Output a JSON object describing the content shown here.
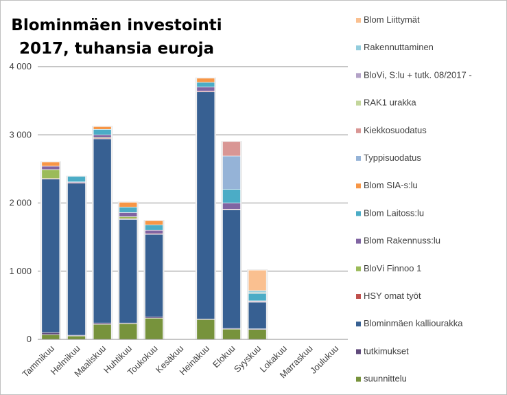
{
  "chart_data": {
    "type": "bar",
    "stacked": true,
    "title_lines": [
      "Blominmäen investointi",
      "2017, tuhansia euroja"
    ],
    "xlabel": "",
    "ylabel": "",
    "ylim": [
      0,
      4000
    ],
    "yticks": [
      0,
      1000,
      2000,
      3000,
      4000
    ],
    "ytick_labels": [
      "0",
      "1 000",
      "2 000",
      "3 000",
      "4 000"
    ],
    "grid": true,
    "legend_position": "right",
    "categories": [
      "Tammikuu",
      "Helmikuu",
      "Maaliskuu",
      "Huhtikuu",
      "Toukokuu",
      "Kesäkuu",
      "Heinäkuu",
      "Elokuu",
      "Syyskuu",
      "Lokakuu",
      "Marraskuu",
      "Joulukuu"
    ],
    "series": [
      {
        "name": "suunnittelu",
        "color": "#77933c",
        "values": [
          70,
          50,
          220,
          230,
          310,
          0,
          290,
          150,
          145,
          0,
          0,
          0
        ]
      },
      {
        "name": "tutkimukset",
        "color": "#604a7b",
        "values": [
          30,
          10,
          20,
          10,
          20,
          0,
          10,
          10,
          10,
          0,
          0,
          0
        ]
      },
      {
        "name": "Blominmäen kalliourakka",
        "color": "#376092",
        "values": [
          2250,
          2230,
          2700,
          1520,
          1210,
          0,
          3330,
          1740,
          390,
          0,
          0,
          0
        ]
      },
      {
        "name": "HSY omat työt",
        "color": "#c0504d",
        "values": [
          10,
          10,
          10,
          10,
          10,
          0,
          10,
          10,
          10,
          0,
          0,
          0
        ]
      },
      {
        "name": "BloVi Finnoo 1",
        "color": "#9bbb59",
        "values": [
          130,
          0,
          10,
          30,
          0,
          0,
          0,
          0,
          0,
          0,
          0,
          0
        ]
      },
      {
        "name": "Blom Rakennuss:lu",
        "color": "#8064a2",
        "values": [
          50,
          10,
          40,
          60,
          50,
          0,
          60,
          90,
          10,
          0,
          0,
          0
        ]
      },
      {
        "name": "Blom Laitoss:lu",
        "color": "#4bacc6",
        "values": [
          0,
          80,
          80,
          80,
          80,
          0,
          70,
          200,
          110,
          0,
          0,
          0
        ]
      },
      {
        "name": "Blom SIA-s:lu",
        "color": "#f79646",
        "values": [
          60,
          0,
          40,
          70,
          60,
          0,
          60,
          0,
          10,
          0,
          0,
          0
        ]
      },
      {
        "name": "Typpisuodatus",
        "color": "#95b3d7",
        "values": [
          0,
          0,
          0,
          0,
          0,
          0,
          0,
          490,
          0,
          0,
          0,
          0
        ]
      },
      {
        "name": "Kiekkosuodatus",
        "color": "#d99694",
        "values": [
          0,
          0,
          0,
          0,
          0,
          0,
          0,
          210,
          0,
          0,
          0,
          0
        ]
      },
      {
        "name": "RAK1 urakka",
        "color": "#c3d69b",
        "values": [
          0,
          0,
          0,
          0,
          0,
          0,
          0,
          0,
          0,
          0,
          0,
          0
        ]
      },
      {
        "name": "BloVi, S:lu + tutk. 08/2017 -",
        "color": "#b3a2c7",
        "values": [
          0,
          0,
          0,
          0,
          0,
          0,
          0,
          0,
          0,
          0,
          0,
          0
        ]
      },
      {
        "name": "Rakennuttaminen",
        "color": "#93cddd",
        "values": [
          0,
          0,
          0,
          0,
          0,
          0,
          0,
          0,
          30,
          0,
          0,
          0
        ]
      },
      {
        "name": "Blom Liittymät",
        "color": "#fac090",
        "values": [
          0,
          0,
          0,
          0,
          0,
          0,
          0,
          0,
          300,
          0,
          0,
          0
        ]
      }
    ],
    "legend_order": [
      "Blom Liittymät",
      "Rakennuttaminen",
      "BloVi, S:lu + tutk. 08/2017 -",
      "RAK1 urakka",
      "Kiekkosuodatus",
      "Typpisuodatus",
      "Blom SIA-s:lu",
      "Blom Laitoss:lu",
      "Blom Rakennuss:lu",
      "BloVi Finnoo 1",
      "HSY omat työt",
      "Blominmäen kalliourakka",
      "tutkimukset",
      "suunnittelu"
    ]
  }
}
